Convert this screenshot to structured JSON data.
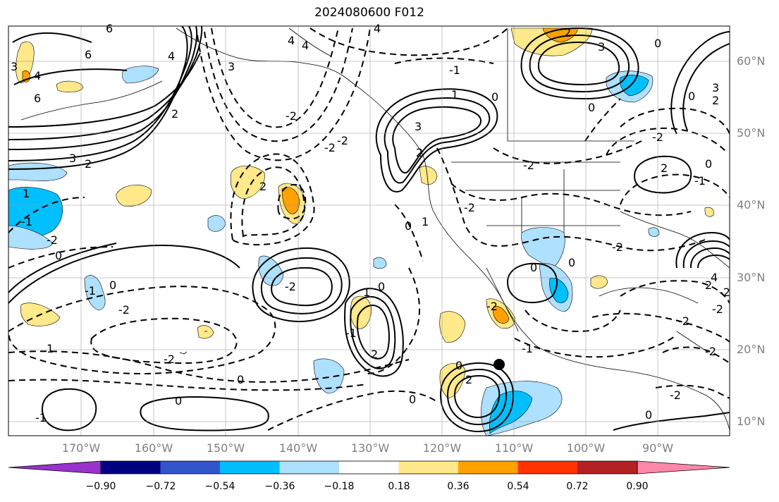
{
  "title": "2024080600 F012",
  "lat_labels": [
    "60°N",
    "50°N",
    "40°N",
    "30°N",
    "20°N",
    "10°N"
  ],
  "lon_labels": [
    "170°W",
    "160°W",
    "150°W",
    "140°W",
    "130°W",
    "120°W",
    "110°W",
    "100°W",
    "90°W"
  ],
  "colorbar": {
    "ticks": [
      "−0.90",
      "−0.72",
      "−0.54",
      "−0.36",
      "−0.18",
      "0.18",
      "0.36",
      "0.54",
      "0.72",
      "0.90"
    ],
    "colors": [
      "#9933cc",
      "#000080",
      "#3355cc",
      "#00bfff",
      "#aee0ff",
      "#ffffff",
      "#ffe98a",
      "#ffa200",
      "#ff3300",
      "#b22222",
      "#ff88aa"
    ]
  },
  "contour_labels": [
    {
      "text": "6"
    },
    {
      "text": "6"
    },
    {
      "text": "3"
    },
    {
      "text": "4"
    },
    {
      "text": "6"
    },
    {
      "text": "4"
    },
    {
      "text": "4"
    },
    {
      "text": "4"
    },
    {
      "text": "4"
    },
    {
      "text": "2"
    },
    {
      "text": "2"
    },
    {
      "text": "3"
    },
    {
      "text": "-2"
    },
    {
      "text": "-2"
    },
    {
      "text": "-2"
    },
    {
      "text": "3"
    },
    {
      "text": "2"
    },
    {
      "text": "1"
    },
    {
      "text": "0"
    },
    {
      "text": "-1"
    },
    {
      "text": "2"
    },
    {
      "text": "3"
    },
    {
      "text": "0"
    },
    {
      "text": "3"
    },
    {
      "text": "0"
    },
    {
      "text": "-2"
    },
    {
      "text": "0"
    },
    {
      "text": "2"
    },
    {
      "text": "-1"
    },
    {
      "text": "0"
    },
    {
      "text": "-2"
    },
    {
      "text": "-2"
    },
    {
      "text": "2"
    },
    {
      "text": "0"
    },
    {
      "text": "1"
    },
    {
      "text": "-2"
    },
    {
      "text": "1"
    },
    {
      "text": "0"
    },
    {
      "text": "-2"
    },
    {
      "text": "-1"
    },
    {
      "text": "-2"
    },
    {
      "text": "0"
    },
    {
      "text": "0"
    },
    {
      "text": "-2"
    },
    {
      "text": "-2"
    },
    {
      "text": "4"
    },
    {
      "text": "-1"
    },
    {
      "text": "0"
    },
    {
      "text": "1"
    },
    {
      "text": "0"
    },
    {
      "text": "-2"
    },
    {
      "text": "-2"
    },
    {
      "text": "1"
    },
    {
      "text": "-1"
    },
    {
      "text": "2"
    },
    {
      "text": "0"
    },
    {
      "text": "2"
    },
    {
      "text": "-2"
    },
    {
      "text": "0"
    },
    {
      "text": "0"
    },
    {
      "text": "-1"
    },
    {
      "text": "0"
    },
    {
      "text": "-1"
    },
    {
      "text": "-2"
    },
    {
      "text": "-2"
    },
    {
      "text": "2"
    },
    {
      "text": "3"
    },
    {
      "text": "0"
    },
    {
      "text": "2"
    },
    {
      "text": "-2"
    }
  ]
}
